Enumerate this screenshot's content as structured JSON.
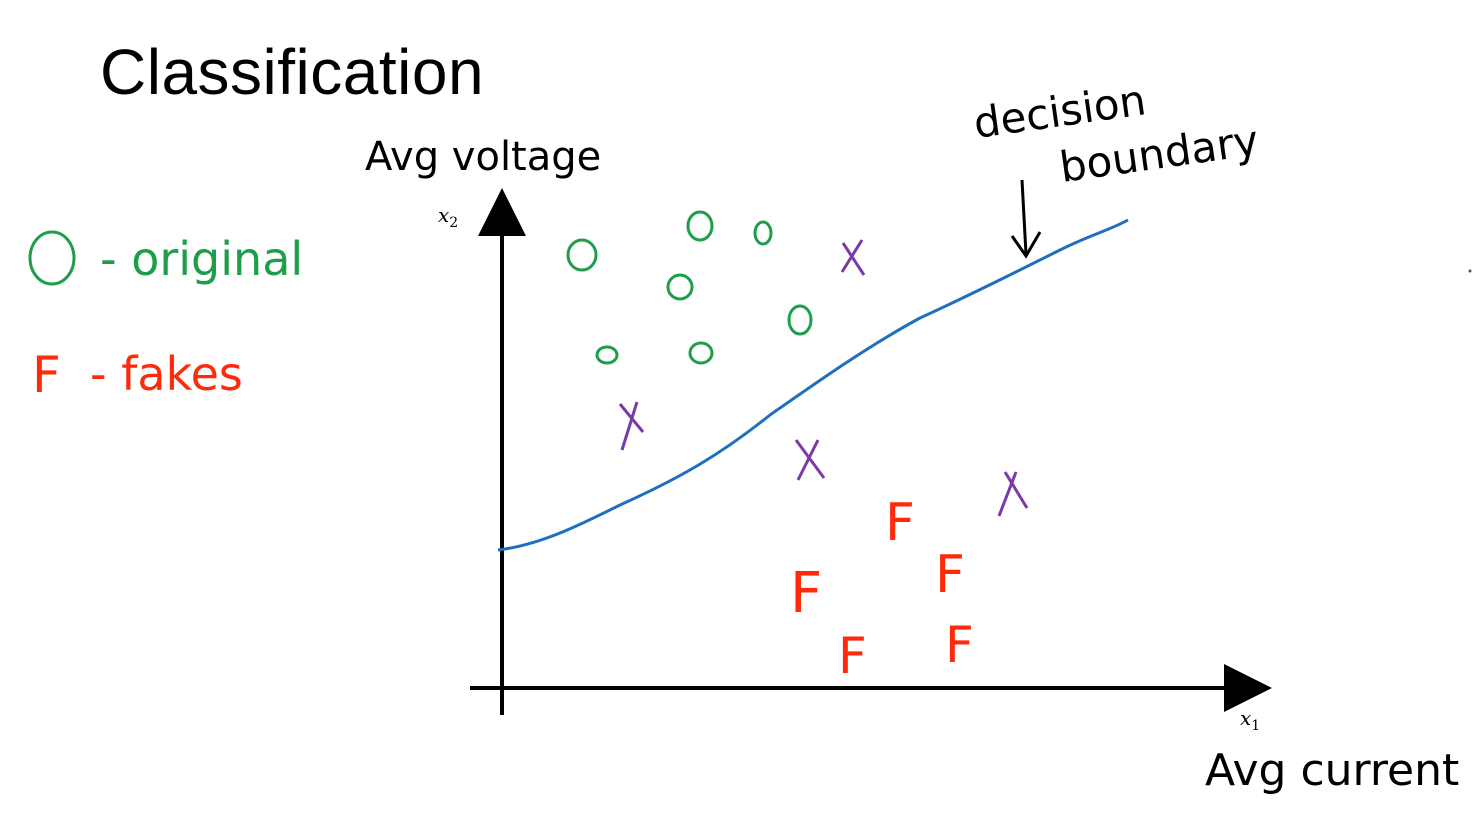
{
  "slide": {
    "title": "Classification"
  },
  "legend": {
    "original": {
      "symbol": "O",
      "text": "- original",
      "color": "#1e9e4a"
    },
    "fakes": {
      "symbol": "F",
      "text": "- fakes",
      "color": "#ff2a0a"
    }
  },
  "axes": {
    "x_symbol": "x",
    "x_subscript": "1",
    "y_symbol": "x",
    "y_subscript": "2",
    "x_label": "Avg current",
    "y_label": "Avg voltage",
    "color": "#000000"
  },
  "boundary": {
    "label_line1": "decision",
    "label_line2": "boundary",
    "color": "#1f6fbf"
  },
  "markers": {
    "original_glyph": "O",
    "fake_glyph": "F",
    "unknown_glyph": "X",
    "original_color": "#1e9e4a",
    "fake_color": "#ff2a0a",
    "unknown_color": "#7a3aa8"
  }
}
